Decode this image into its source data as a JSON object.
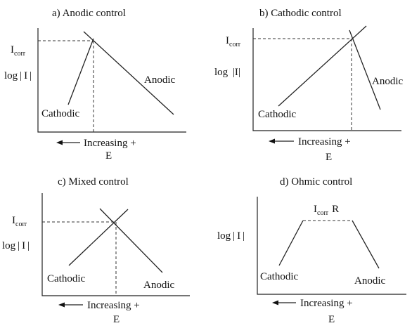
{
  "panels": {
    "a": {
      "title": "a) Anodic control",
      "icorr_main": "I",
      "icorr_sub": "corr",
      "ylabel": "log | I |",
      "cathodic": "Cathodic",
      "anodic": "Anodic",
      "xlabel": "Increasing +",
      "xlabel2": "E"
    },
    "b": {
      "title": "b) Cathodic control",
      "icorr_main": "I",
      "icorr_sub": "corr",
      "ylabel": "log  |I|",
      "cathodic": "Cathodic",
      "anodic": "Anodic",
      "xlabel": "Increasing +",
      "xlabel2": "E"
    },
    "c": {
      "title": "c) Mixed control",
      "icorr_main": "I",
      "icorr_sub": "corr",
      "ylabel": "log | I |",
      "cathodic": "Cathodic",
      "anodic": "Anodic",
      "xlabel": "Increasing +",
      "xlabel2": "E"
    },
    "d": {
      "title": "d) Ohmic control",
      "icorr_main": "I",
      "icorr_sub": "corr",
      "icorr_suffix": "R",
      "ylabel": "log | I |",
      "cathodic": "Cathodic",
      "anodic": "Anodic",
      "xlabel": "Increasing +",
      "xlabel2": "E"
    }
  }
}
